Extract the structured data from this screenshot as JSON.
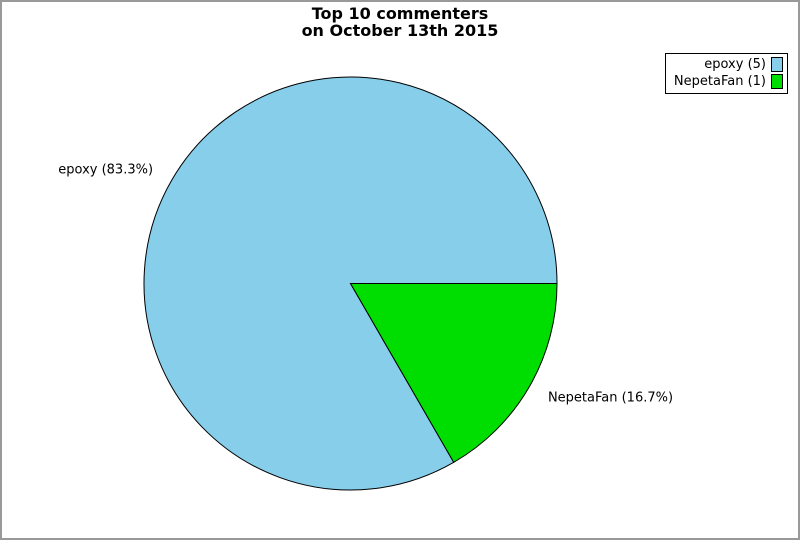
{
  "frame": {
    "border_color": "#999999",
    "background": "#ffffff"
  },
  "chart_data": {
    "type": "pie",
    "title": "Top 10 commenters\non October 13th 2015",
    "total": 6,
    "slices": [
      {
        "name": "epoxy",
        "value": 5,
        "percent": 83.3,
        "color": "#87CEEB",
        "slice_label": "epoxy (83.3%)",
        "legend_label": "epoxy (5)"
      },
      {
        "name": "NepetaFan",
        "value": 1,
        "percent": 16.7,
        "color": "#00DD00",
        "slice_label": "NepetaFan (16.7%)",
        "legend_label": "NepetaFan (1)"
      }
    ],
    "start_angle_deg": 0,
    "direction": "counterclockwise",
    "legend_position": "top-right",
    "outline_color": "#000000"
  }
}
